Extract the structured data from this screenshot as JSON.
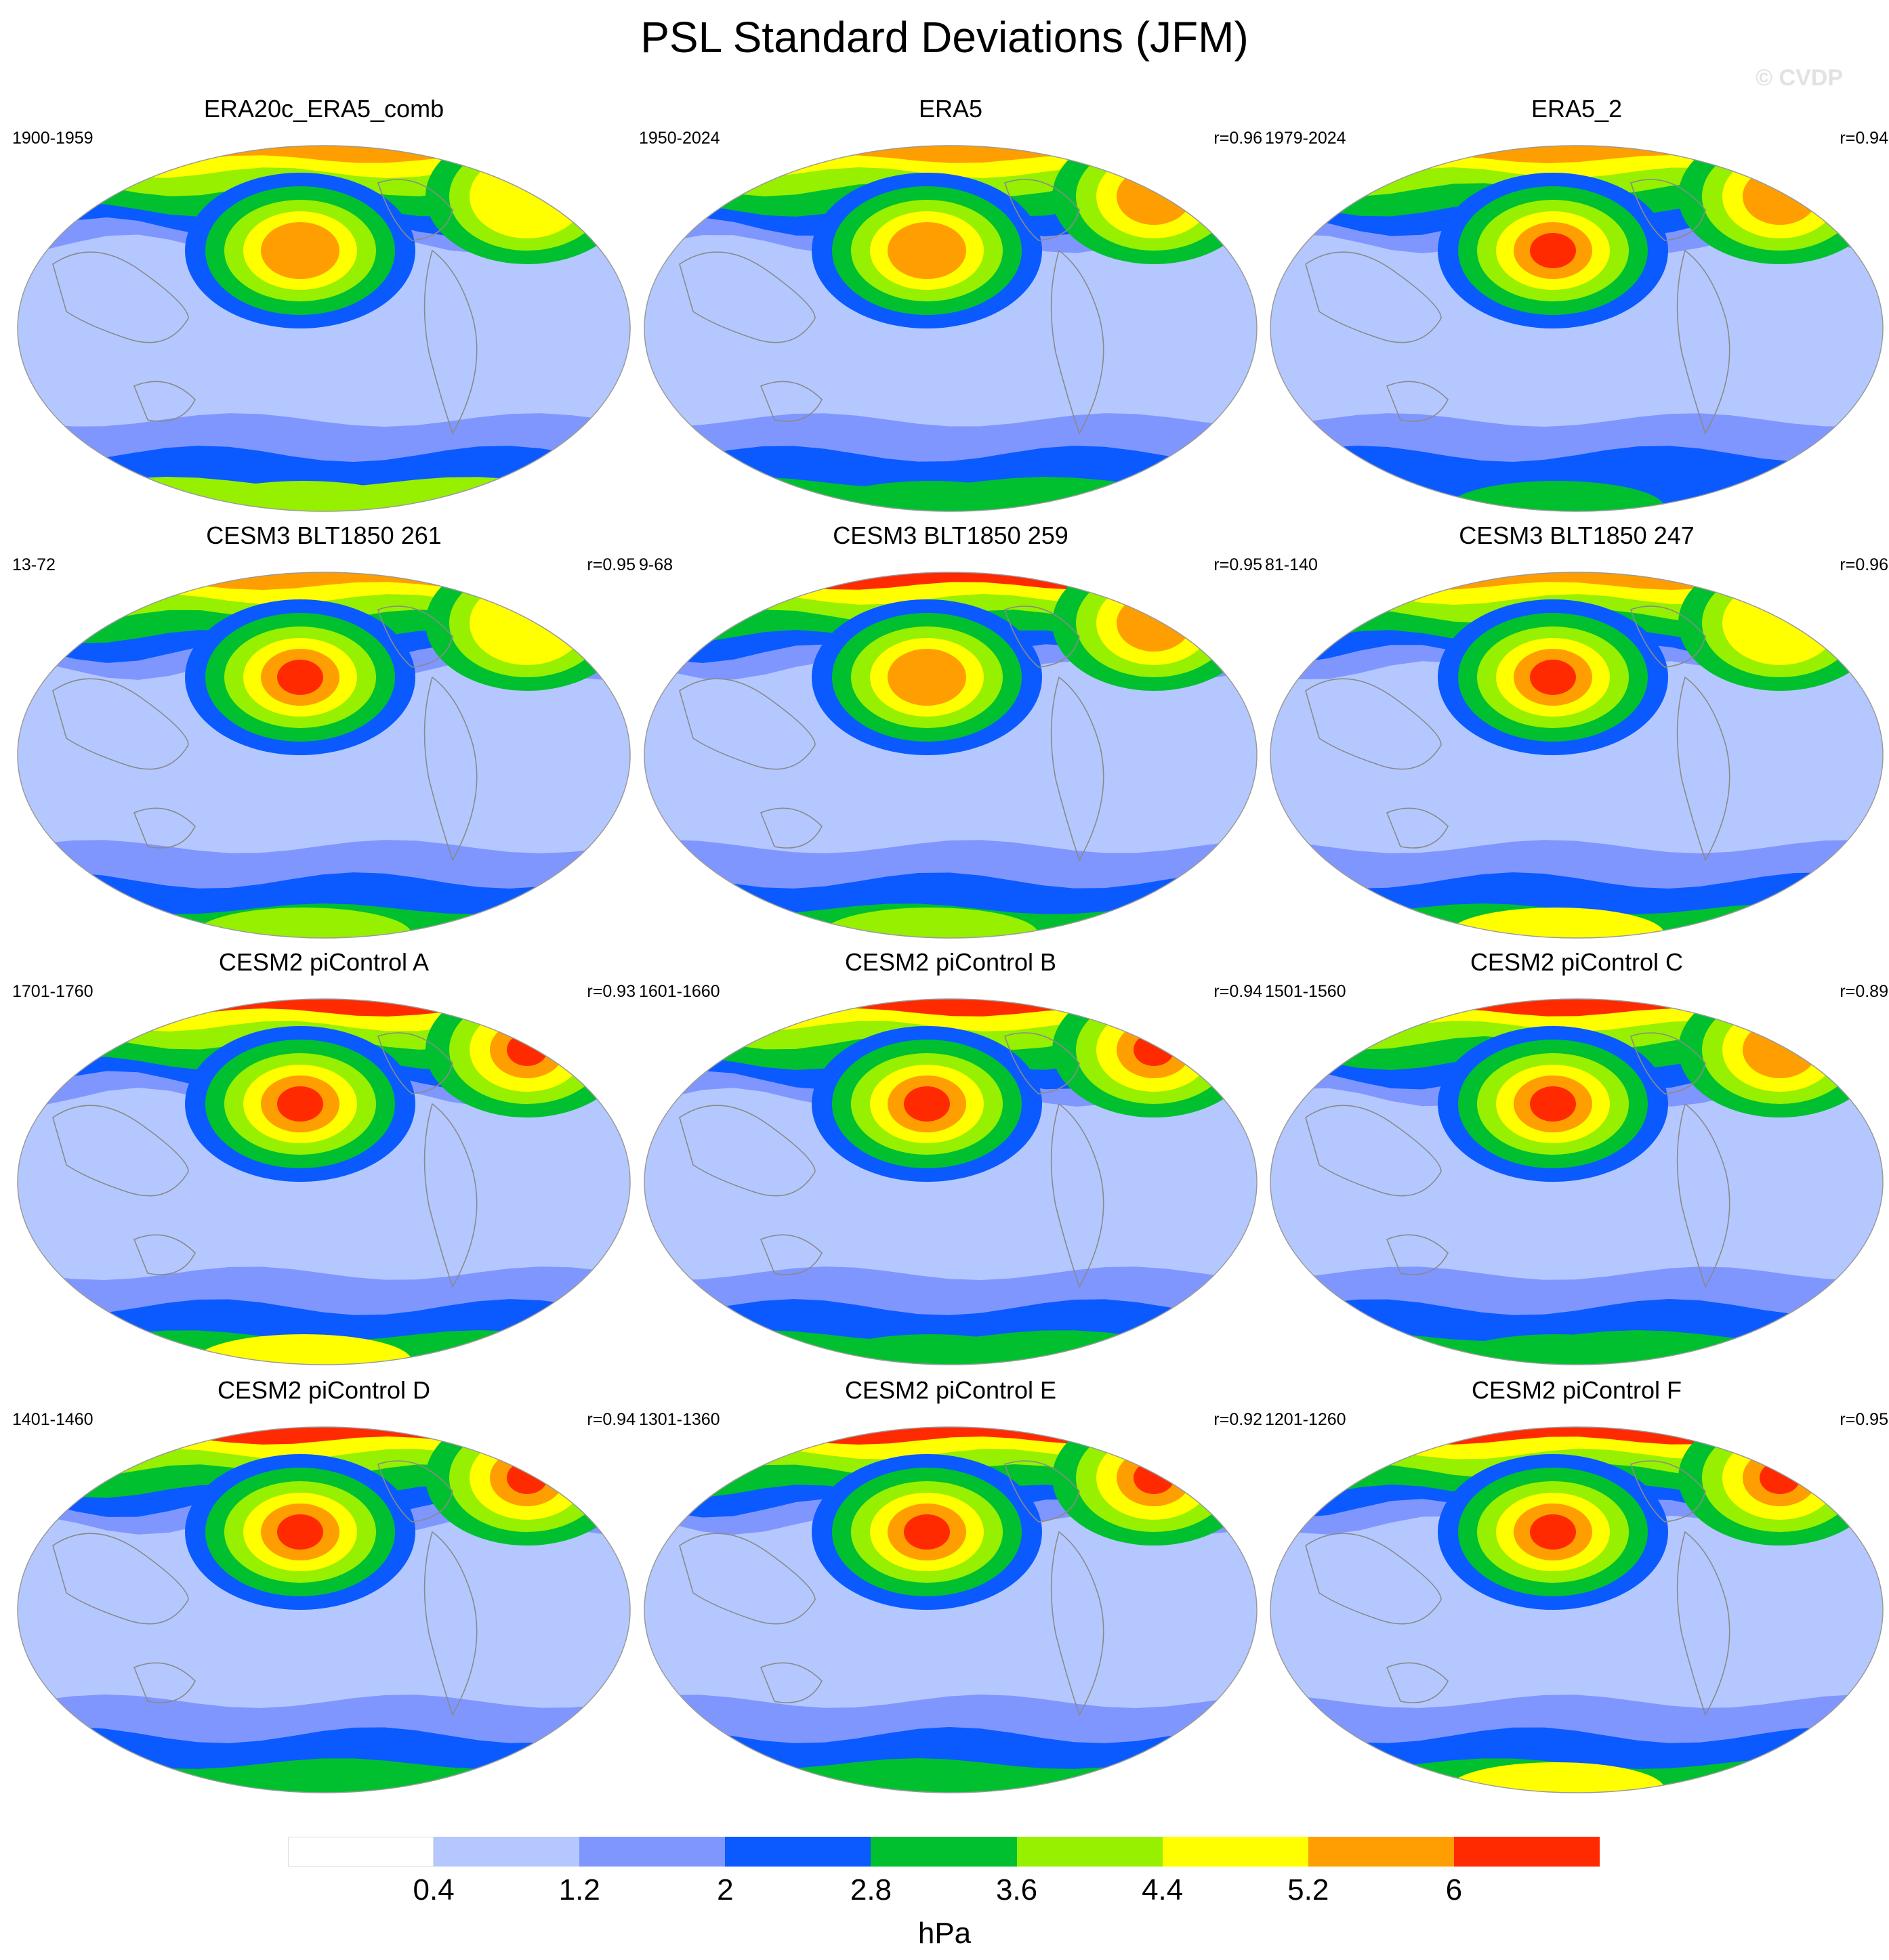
{
  "title": "PSL Standard Deviations (JFM)",
  "watermark": "© CVDP",
  "colorbar": {
    "units": "hPa",
    "labels": [
      "0.4",
      "1.2",
      "2",
      "2.8",
      "3.6",
      "4.4",
      "5.2",
      "6"
    ],
    "colors": [
      "#ffffff",
      "#b4c8ff",
      "#8096ff",
      "#0a5aff",
      "#00c030",
      "#96f000",
      "#ffff00",
      "#ff9e00",
      "#ff2a00"
    ]
  },
  "panels": [
    {
      "title": "ERA20c_ERA5_comb",
      "years": "1900-1959",
      "corr": "",
      "levels": {
        "arctic": 7,
        "aleutian": 7,
        "atlantic": 6,
        "south": 5,
        "antarctic": 5
      }
    },
    {
      "title": "ERA5",
      "years": "1950-2024",
      "corr": "r=0.96",
      "levels": {
        "arctic": 7,
        "aleutian": 7,
        "atlantic": 7,
        "south": 4,
        "antarctic": 4
      }
    },
    {
      "title": "ERA5_2",
      "years": "1979-2024",
      "corr": "r=0.94",
      "levels": {
        "arctic": 7,
        "aleutian": 8,
        "atlantic": 7,
        "south": 3,
        "antarctic": 4
      }
    },
    {
      "title": "CESM3 BLT1850 261",
      "years": "13-72",
      "corr": "r=0.95",
      "levels": {
        "arctic": 7,
        "aleutian": 8,
        "atlantic": 6,
        "south": 4,
        "antarctic": 5
      }
    },
    {
      "title": "CESM3 BLT1850 259",
      "years": "9-68",
      "corr": "r=0.95",
      "levels": {
        "arctic": 8,
        "aleutian": 7,
        "atlantic": 7,
        "south": 4,
        "antarctic": 5
      }
    },
    {
      "title": "CESM3 BLT1850 247",
      "years": "81-140",
      "corr": "r=0.96",
      "levels": {
        "arctic": 7,
        "aleutian": 8,
        "atlantic": 6,
        "south": 4,
        "antarctic": 6
      }
    },
    {
      "title": "CESM2 piControl A",
      "years": "1701-1760",
      "corr": "r=0.93",
      "levels": {
        "arctic": 8,
        "aleutian": 8,
        "atlantic": 8,
        "south": 4,
        "antarctic": 6
      }
    },
    {
      "title": "CESM2 piControl B",
      "years": "1601-1660",
      "corr": "r=0.94",
      "levels": {
        "arctic": 8,
        "aleutian": 8,
        "atlantic": 8,
        "south": 4,
        "antarctic": 4
      }
    },
    {
      "title": "CESM2 piControl C",
      "years": "1501-1560",
      "corr": "r=0.89",
      "levels": {
        "arctic": 8,
        "aleutian": 8,
        "atlantic": 7,
        "south": 4,
        "antarctic": 4
      }
    },
    {
      "title": "CESM2 piControl D",
      "years": "1401-1460",
      "corr": "r=0.94",
      "levels": {
        "arctic": 8,
        "aleutian": 8,
        "atlantic": 8,
        "south": 4,
        "antarctic": 4
      }
    },
    {
      "title": "CESM2 piControl E",
      "years": "1301-1360",
      "corr": "r=0.92",
      "levels": {
        "arctic": 8,
        "aleutian": 8,
        "atlantic": 8,
        "south": 4,
        "antarctic": 4
      }
    },
    {
      "title": "CESM2 piControl F",
      "years": "1201-1260",
      "corr": "r=0.95",
      "levels": {
        "arctic": 8,
        "aleutian": 8,
        "atlantic": 8,
        "south": 4,
        "antarctic": 6
      }
    }
  ]
}
